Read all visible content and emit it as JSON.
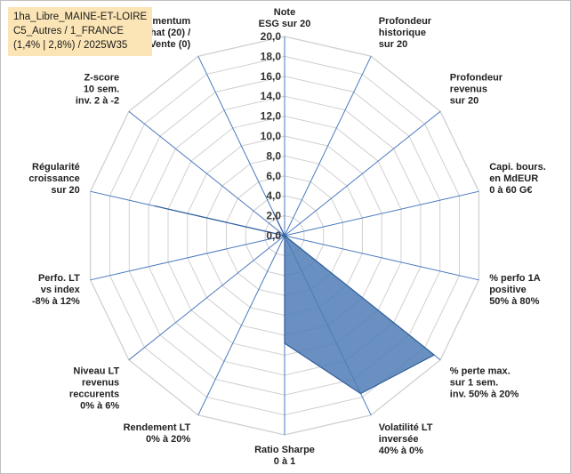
{
  "info": {
    "line1": "1ha_Libre_MAINE-ET-LOIRE",
    "line2": "C5_Autres / 1_FRANCE",
    "line3": "(1,4% | 2,8%) / 2025W35"
  },
  "colors": {
    "fill": "#4f7db5",
    "stroke": "#2f5e9a",
    "grid": "#d0d0d0",
    "spoke": "#4a78c0",
    "info_bg": "#fbe5b6"
  },
  "chart_data": {
    "type": "radar",
    "title": "",
    "rmax": 20,
    "ticks": [
      "0,0",
      "2,0",
      "4,0",
      "6,0",
      "8,0",
      "10,0",
      "12,0",
      "14,0",
      "16,0",
      "18,0",
      "20,0"
    ],
    "axes": [
      {
        "lines": [
          "Note",
          "ESG sur 20"
        ]
      },
      {
        "lines": [
          "Profondeur",
          "historique",
          "sur 20"
        ]
      },
      {
        "lines": [
          "Profondeur",
          "revenus",
          "sur 20"
        ]
      },
      {
        "lines": [
          "Capi. bours.",
          "en MdEUR",
          "0 à 60 G€"
        ]
      },
      {
        "lines": [
          "% perfo 1A",
          "positive",
          "50% à 80%"
        ]
      },
      {
        "lines": [
          "% perte max.",
          "sur 1 sem.",
          "inv. 50% à 20%"
        ]
      },
      {
        "lines": [
          "Volatilité LT",
          "inversée",
          "40% à 0%"
        ]
      },
      {
        "lines": [
          "Ratio Sharpe",
          "0 à 1"
        ]
      },
      {
        "lines": [
          "Rendement LT",
          "0% à 20%"
        ]
      },
      {
        "lines": [
          "Niveau LT",
          "revenus",
          "reccurents",
          "0% à 6%"
        ]
      },
      {
        "lines": [
          "Perfo. LT",
          "vs index",
          "-8% à 12%"
        ]
      },
      {
        "lines": [
          "Régularité",
          "croissance",
          "sur 20"
        ]
      },
      {
        "lines": [
          "Z-score",
          "10 sem.",
          "inv. 2 à -2"
        ]
      },
      {
        "lines": [
          "Momentum",
          "Achat (20) /",
          "Vente (0)"
        ]
      }
    ],
    "series": [
      {
        "values": [
          0,
          0,
          0,
          0,
          0,
          19.2,
          17.6,
          10.8,
          0,
          0,
          0,
          13.4,
          0,
          2.7
        ]
      }
    ]
  }
}
